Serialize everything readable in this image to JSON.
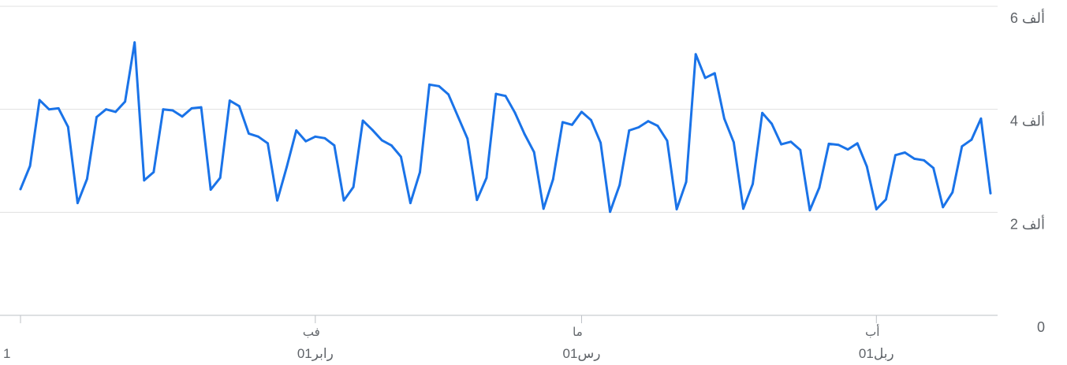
{
  "chart_data": {
    "type": "line",
    "title": "",
    "xlabel": "",
    "ylabel": "",
    "ylim": [
      0,
      6000
    ],
    "yticks": [
      {
        "value": 0,
        "label": "0"
      },
      {
        "value": 2000,
        "label": "2 ألف"
      },
      {
        "value": 4000,
        "label": "4 ألف"
      },
      {
        "value": 6000,
        "label": "6 ألف"
      }
    ],
    "x_start_label": "1",
    "xticks": [
      {
        "index": 0,
        "top": "",
        "bottom": ""
      },
      {
        "index": 31,
        "top": "فب",
        "bottom": "01رابر"
      },
      {
        "index": 59,
        "top": "ما",
        "bottom": "01رس"
      },
      {
        "index": 90,
        "top": "أب",
        "bottom": "01ربل"
      }
    ],
    "grid": true,
    "line_color": "#1a73e8",
    "series": [
      {
        "values": [
          2450,
          2900,
          4180,
          4000,
          4020,
          3660,
          2180,
          2650,
          3850,
          4000,
          3950,
          4150,
          5300,
          2620,
          2780,
          4000,
          3980,
          3860,
          4020,
          4040,
          2440,
          2670,
          4170,
          4060,
          3530,
          3470,
          3340,
          2230,
          2880,
          3590,
          3380,
          3470,
          3440,
          3300,
          2230,
          2490,
          3780,
          3600,
          3400,
          3300,
          3080,
          2180,
          2780,
          4480,
          4450,
          4290,
          3860,
          3430,
          2240,
          2670,
          4300,
          4260,
          3930,
          3520,
          3170,
          2070,
          2640,
          3750,
          3700,
          3950,
          3790,
          3350,
          2010,
          2530,
          3590,
          3650,
          3770,
          3680,
          3390,
          2060,
          2590,
          5070,
          4610,
          4700,
          3820,
          3360,
          2070,
          2550,
          3930,
          3720,
          3320,
          3370,
          3210,
          2040,
          2480,
          3330,
          3310,
          3220,
          3340,
          2890,
          2060,
          2250,
          3110,
          3160,
          3040,
          3010,
          2860,
          2100,
          2390,
          3280,
          3410,
          3820,
          2370
        ]
      }
    ]
  }
}
